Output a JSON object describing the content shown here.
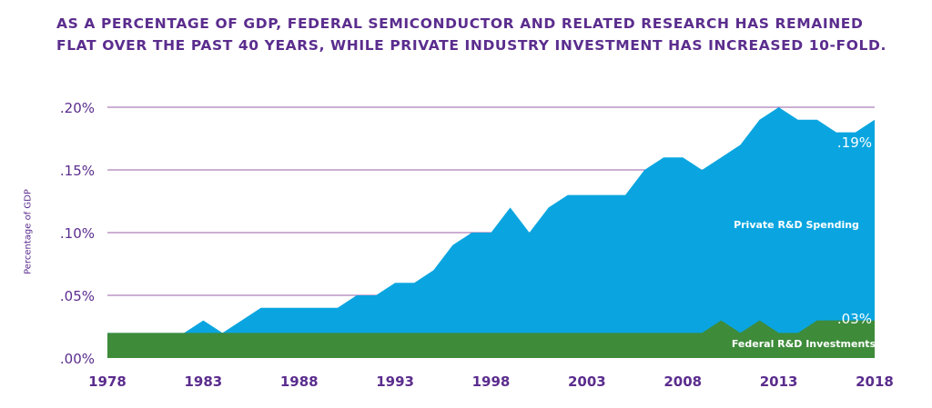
{
  "title_lines": [
    "AS A PERCENTAGE OF GDP, FEDERAL SEMICONDUCTOR AND RELATED RESEARCH HAS REMAINED",
    "FLAT OVER THE PAST 40 YEARS, WHILE PRIVATE INDUSTRY INVESTMENT HAS INCREASED 10-FOLD."
  ],
  "colors": {
    "title": "#5b2d8e",
    "private": "#0aa5e0",
    "federal": "#3e8b3a",
    "grid": "#9a5fa8",
    "axis_text": "#5b2d8e",
    "label_on_area": "#ffffff"
  },
  "chart_data": {
    "type": "area",
    "ylabel": "Percentage of GDP",
    "ylim": [
      0,
      0.2
    ],
    "y_ticks": [
      0,
      0.05,
      0.1,
      0.15,
      0.2
    ],
    "y_tick_labels": [
      ".00%",
      ".05%",
      ".10%",
      ".15%",
      ".20%"
    ],
    "xlim": [
      1978,
      2018
    ],
    "x_ticks": [
      1978,
      1983,
      1988,
      1993,
      1998,
      2003,
      2008,
      2013,
      2018
    ],
    "x_tick_labels": [
      "1978",
      "1983",
      "1988",
      "1993",
      "1998",
      "2003",
      "2008",
      "2013",
      "2018"
    ],
    "grid": true,
    "series": [
      {
        "name": "Private R&D Spending",
        "end_label": ".19%",
        "x": [
          1978,
          1982,
          1983,
          1984,
          1985,
          1986,
          1987,
          1988,
          1989,
          1990,
          1991,
          1992,
          1993,
          1994,
          1995,
          1996,
          1997,
          1998,
          1999,
          2000,
          2001,
          2002,
          2003,
          2004,
          2005,
          2006,
          2007,
          2008,
          2009,
          2010,
          2011,
          2012,
          2013,
          2014,
          2015,
          2016,
          2017,
          2018
        ],
        "values": [
          0.02,
          0.02,
          0.03,
          0.02,
          0.03,
          0.04,
          0.04,
          0.04,
          0.04,
          0.04,
          0.05,
          0.05,
          0.06,
          0.06,
          0.07,
          0.09,
          0.1,
          0.1,
          0.12,
          0.1,
          0.12,
          0.13,
          0.13,
          0.13,
          0.13,
          0.15,
          0.16,
          0.16,
          0.15,
          0.16,
          0.17,
          0.19,
          0.2,
          0.19,
          0.19,
          0.18,
          0.18,
          0.19
        ]
      },
      {
        "name": "Federal R&D Investments",
        "end_label": ".03%",
        "x": [
          1978,
          2009,
          2010,
          2011,
          2012,
          2013,
          2014,
          2015,
          2016,
          2017,
          2018
        ],
        "values": [
          0.02,
          0.02,
          0.03,
          0.02,
          0.03,
          0.02,
          0.02,
          0.03,
          0.03,
          0.03,
          0.03
        ]
      }
    ]
  }
}
